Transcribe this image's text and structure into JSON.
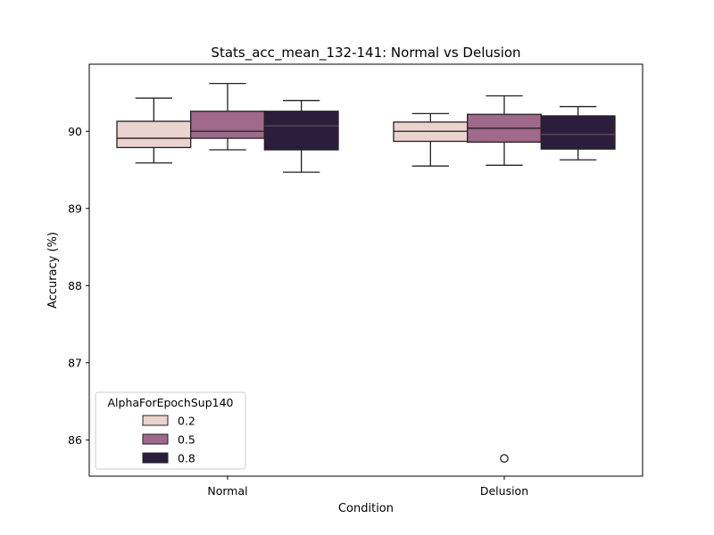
{
  "chart_data": {
    "type": "boxplot",
    "title": "Stats_acc_mean_132-141: Normal vs Delusion",
    "xlabel": "Condition",
    "ylabel": "Accuracy (%)",
    "ylim": [
      85.53,
      90.87
    ],
    "yticks": [
      86,
      87,
      88,
      89,
      90
    ],
    "categories": [
      "Normal",
      "Delusion"
    ],
    "legend": {
      "title": "AlphaForEpochSup140",
      "placement": "lower-left"
    },
    "series": [
      {
        "name": "0.2",
        "color": "#ebd3cf",
        "boxes": [
          {
            "category": "Normal",
            "whisker_low": 89.59,
            "q1": 89.79,
            "median": 89.91,
            "q3": 90.13,
            "whisker_high": 90.43,
            "outliers": []
          },
          {
            "category": "Delusion",
            "whisker_low": 89.55,
            "q1": 89.87,
            "median": 90.0,
            "q3": 90.12,
            "whisker_high": 90.23,
            "outliers": []
          }
        ]
      },
      {
        "name": "0.5",
        "color": "#a0688b",
        "boxes": [
          {
            "category": "Normal",
            "whisker_low": 89.76,
            "q1": 89.91,
            "median": 90.0,
            "q3": 90.26,
            "whisker_high": 90.62,
            "outliers": []
          },
          {
            "category": "Delusion",
            "whisker_low": 89.56,
            "q1": 89.86,
            "median": 90.04,
            "q3": 90.22,
            "whisker_high": 90.46,
            "outliers": [
              85.76
            ]
          }
        ]
      },
      {
        "name": "0.8",
        "color": "#2c1d3c",
        "boxes": [
          {
            "category": "Normal",
            "whisker_low": 89.47,
            "q1": 89.76,
            "median": 90.07,
            "q3": 90.26,
            "whisker_high": 90.4,
            "outliers": []
          },
          {
            "category": "Delusion",
            "whisker_low": 89.63,
            "q1": 89.77,
            "median": 89.96,
            "q3": 90.2,
            "whisker_high": 90.32,
            "outliers": []
          }
        ]
      }
    ]
  }
}
